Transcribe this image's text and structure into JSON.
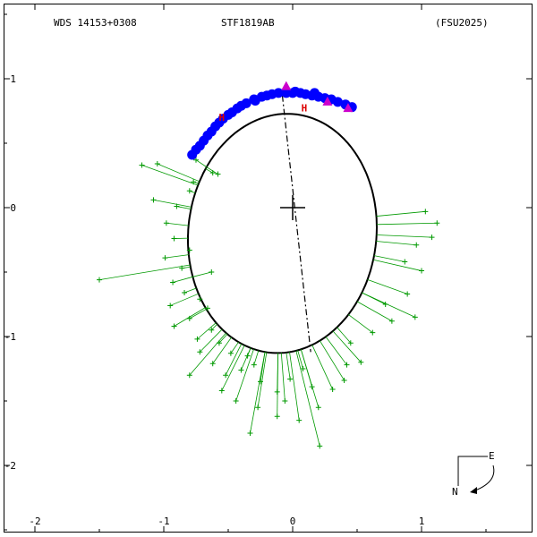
{
  "header": {
    "left": "WDS 14153+0308",
    "center": "STF1819AB",
    "right": "(FSU2025)"
  },
  "compass": {
    "east": "E",
    "north": "N"
  },
  "colors": {
    "orbit": "#000000",
    "residual": "#009900",
    "speckle": "#0000ff",
    "hipparcos": "#dd0000",
    "ephemeris": "#cc00cc",
    "node_line": "#000000"
  },
  "chart_data": {
    "type": "scatter",
    "title": "STF1819AB",
    "xlabel": "",
    "ylabel": "",
    "xlim": [
      -2.2,
      1.9
    ],
    "ylim": [
      -2.5,
      1.6
    ],
    "x_ticks": [
      "-2",
      "-1",
      "0",
      "1"
    ],
    "x_tick_values": [
      -2,
      -1,
      0,
      1
    ],
    "y_ticks": [
      "1",
      "0",
      "-1",
      "-2"
    ],
    "y_tick_values": [
      1,
      0,
      -1,
      -2
    ],
    "primary": [
      0,
      0
    ],
    "orbit_ellipse": {
      "center": [
        -0.08,
        -0.2
      ],
      "a_axis": 0.93,
      "b_axis": 0.73,
      "tilt_deg": 84
    },
    "line_of_nodes": [
      [
        -0.08,
        0.87
      ],
      [
        0.14,
        -1.12
      ]
    ],
    "series": [
      {
        "marker": "plus",
        "points": [
          [
            -1.17,
            0.33
          ],
          [
            -1.05,
            0.34
          ],
          [
            -0.75,
            0.37
          ],
          [
            -0.62,
            0.27
          ],
          [
            -0.77,
            0.2
          ],
          [
            -0.58,
            0.26
          ],
          [
            -0.8,
            0.13
          ],
          [
            -1.08,
            0.06
          ],
          [
            -0.9,
            0.01
          ],
          [
            -0.98,
            -0.12
          ],
          [
            -0.92,
            -0.24
          ],
          [
            -0.8,
            -0.33
          ],
          [
            -0.99,
            -0.39
          ],
          [
            -0.86,
            -0.47
          ],
          [
            -0.63,
            -0.5
          ],
          [
            -1.5,
            -0.56
          ],
          [
            -0.93,
            -0.58
          ],
          [
            -0.84,
            -0.66
          ],
          [
            -0.72,
            -0.71
          ],
          [
            -0.95,
            -0.76
          ],
          [
            -0.66,
            -0.78
          ],
          [
            -0.8,
            -0.86
          ],
          [
            -0.92,
            -0.92
          ],
          [
            -0.63,
            -0.95
          ],
          [
            -0.74,
            -1.02
          ],
          [
            -0.57,
            -1.05
          ],
          [
            -0.72,
            -1.12
          ],
          [
            -0.48,
            -1.13
          ],
          [
            -0.62,
            -1.21
          ],
          [
            -0.35,
            -1.15
          ],
          [
            -0.8,
            -1.3
          ],
          [
            -0.52,
            -1.3
          ],
          [
            -0.4,
            -1.26
          ],
          [
            -0.3,
            -1.22
          ],
          [
            -0.55,
            -1.42
          ],
          [
            -0.25,
            -1.35
          ],
          [
            -0.12,
            -1.43
          ],
          [
            -0.44,
            -1.5
          ],
          [
            -0.06,
            -1.5
          ],
          [
            -0.02,
            -1.33
          ],
          [
            0.08,
            -1.25
          ],
          [
            0.15,
            -1.39
          ],
          [
            0.2,
            -1.55
          ],
          [
            0.31,
            -1.41
          ],
          [
            0.4,
            -1.34
          ],
          [
            0.42,
            -1.22
          ],
          [
            0.53,
            -1.2
          ],
          [
            0.45,
            -1.05
          ],
          [
            0.62,
            -0.97
          ],
          [
            0.77,
            -0.88
          ],
          [
            0.95,
            -0.85
          ],
          [
            0.72,
            -0.75
          ],
          [
            0.89,
            -0.67
          ],
          [
            1.0,
            -0.49
          ],
          [
            0.87,
            -0.42
          ],
          [
            0.96,
            -0.29
          ],
          [
            1.08,
            -0.23
          ],
          [
            1.12,
            -0.12
          ],
          [
            1.03,
            -0.03
          ],
          [
            -0.33,
            -1.75
          ],
          [
            0.05,
            -1.65
          ],
          [
            0.21,
            -1.85
          ],
          [
            -0.12,
            -1.62
          ],
          [
            -0.27,
            -1.55
          ]
        ]
      },
      {
        "marker": "filled-circle",
        "points": [
          [
            -0.78,
            0.41
          ],
          [
            -0.75,
            0.45
          ],
          [
            -0.72,
            0.48
          ],
          [
            -0.69,
            0.52
          ],
          [
            -0.66,
            0.56
          ],
          [
            -0.63,
            0.59
          ],
          [
            -0.6,
            0.63
          ],
          [
            -0.57,
            0.66
          ],
          [
            -0.54,
            0.69
          ],
          [
            -0.5,
            0.72
          ],
          [
            -0.47,
            0.74
          ],
          [
            -0.43,
            0.77
          ],
          [
            -0.4,
            0.79
          ],
          [
            -0.36,
            0.81
          ],
          [
            -0.3,
            0.84
          ],
          [
            -0.24,
            0.86
          ],
          [
            -0.2,
            0.87
          ],
          [
            -0.16,
            0.88
          ],
          [
            -0.11,
            0.89
          ],
          [
            -0.05,
            0.89
          ],
          [
            0.0,
            0.89
          ],
          [
            0.06,
            0.89
          ],
          [
            0.1,
            0.88
          ],
          [
            0.15,
            0.87
          ],
          [
            0.2,
            0.86
          ],
          [
            0.25,
            0.85
          ],
          [
            0.3,
            0.84
          ],
          [
            0.35,
            0.82
          ],
          [
            0.41,
            0.8
          ],
          [
            0.46,
            0.78
          ],
          [
            -0.29,
            0.83
          ],
          [
            0.02,
            0.9
          ],
          [
            0.17,
            0.89
          ]
        ]
      },
      {
        "marker": "H",
        "points": [
          [
            -0.55,
            0.71
          ],
          [
            0.09,
            0.78
          ]
        ]
      },
      {
        "marker": "filled-triangle",
        "points": [
          [
            -0.05,
            0.94
          ],
          [
            0.27,
            0.82
          ],
          [
            0.43,
            0.77
          ]
        ]
      }
    ]
  }
}
